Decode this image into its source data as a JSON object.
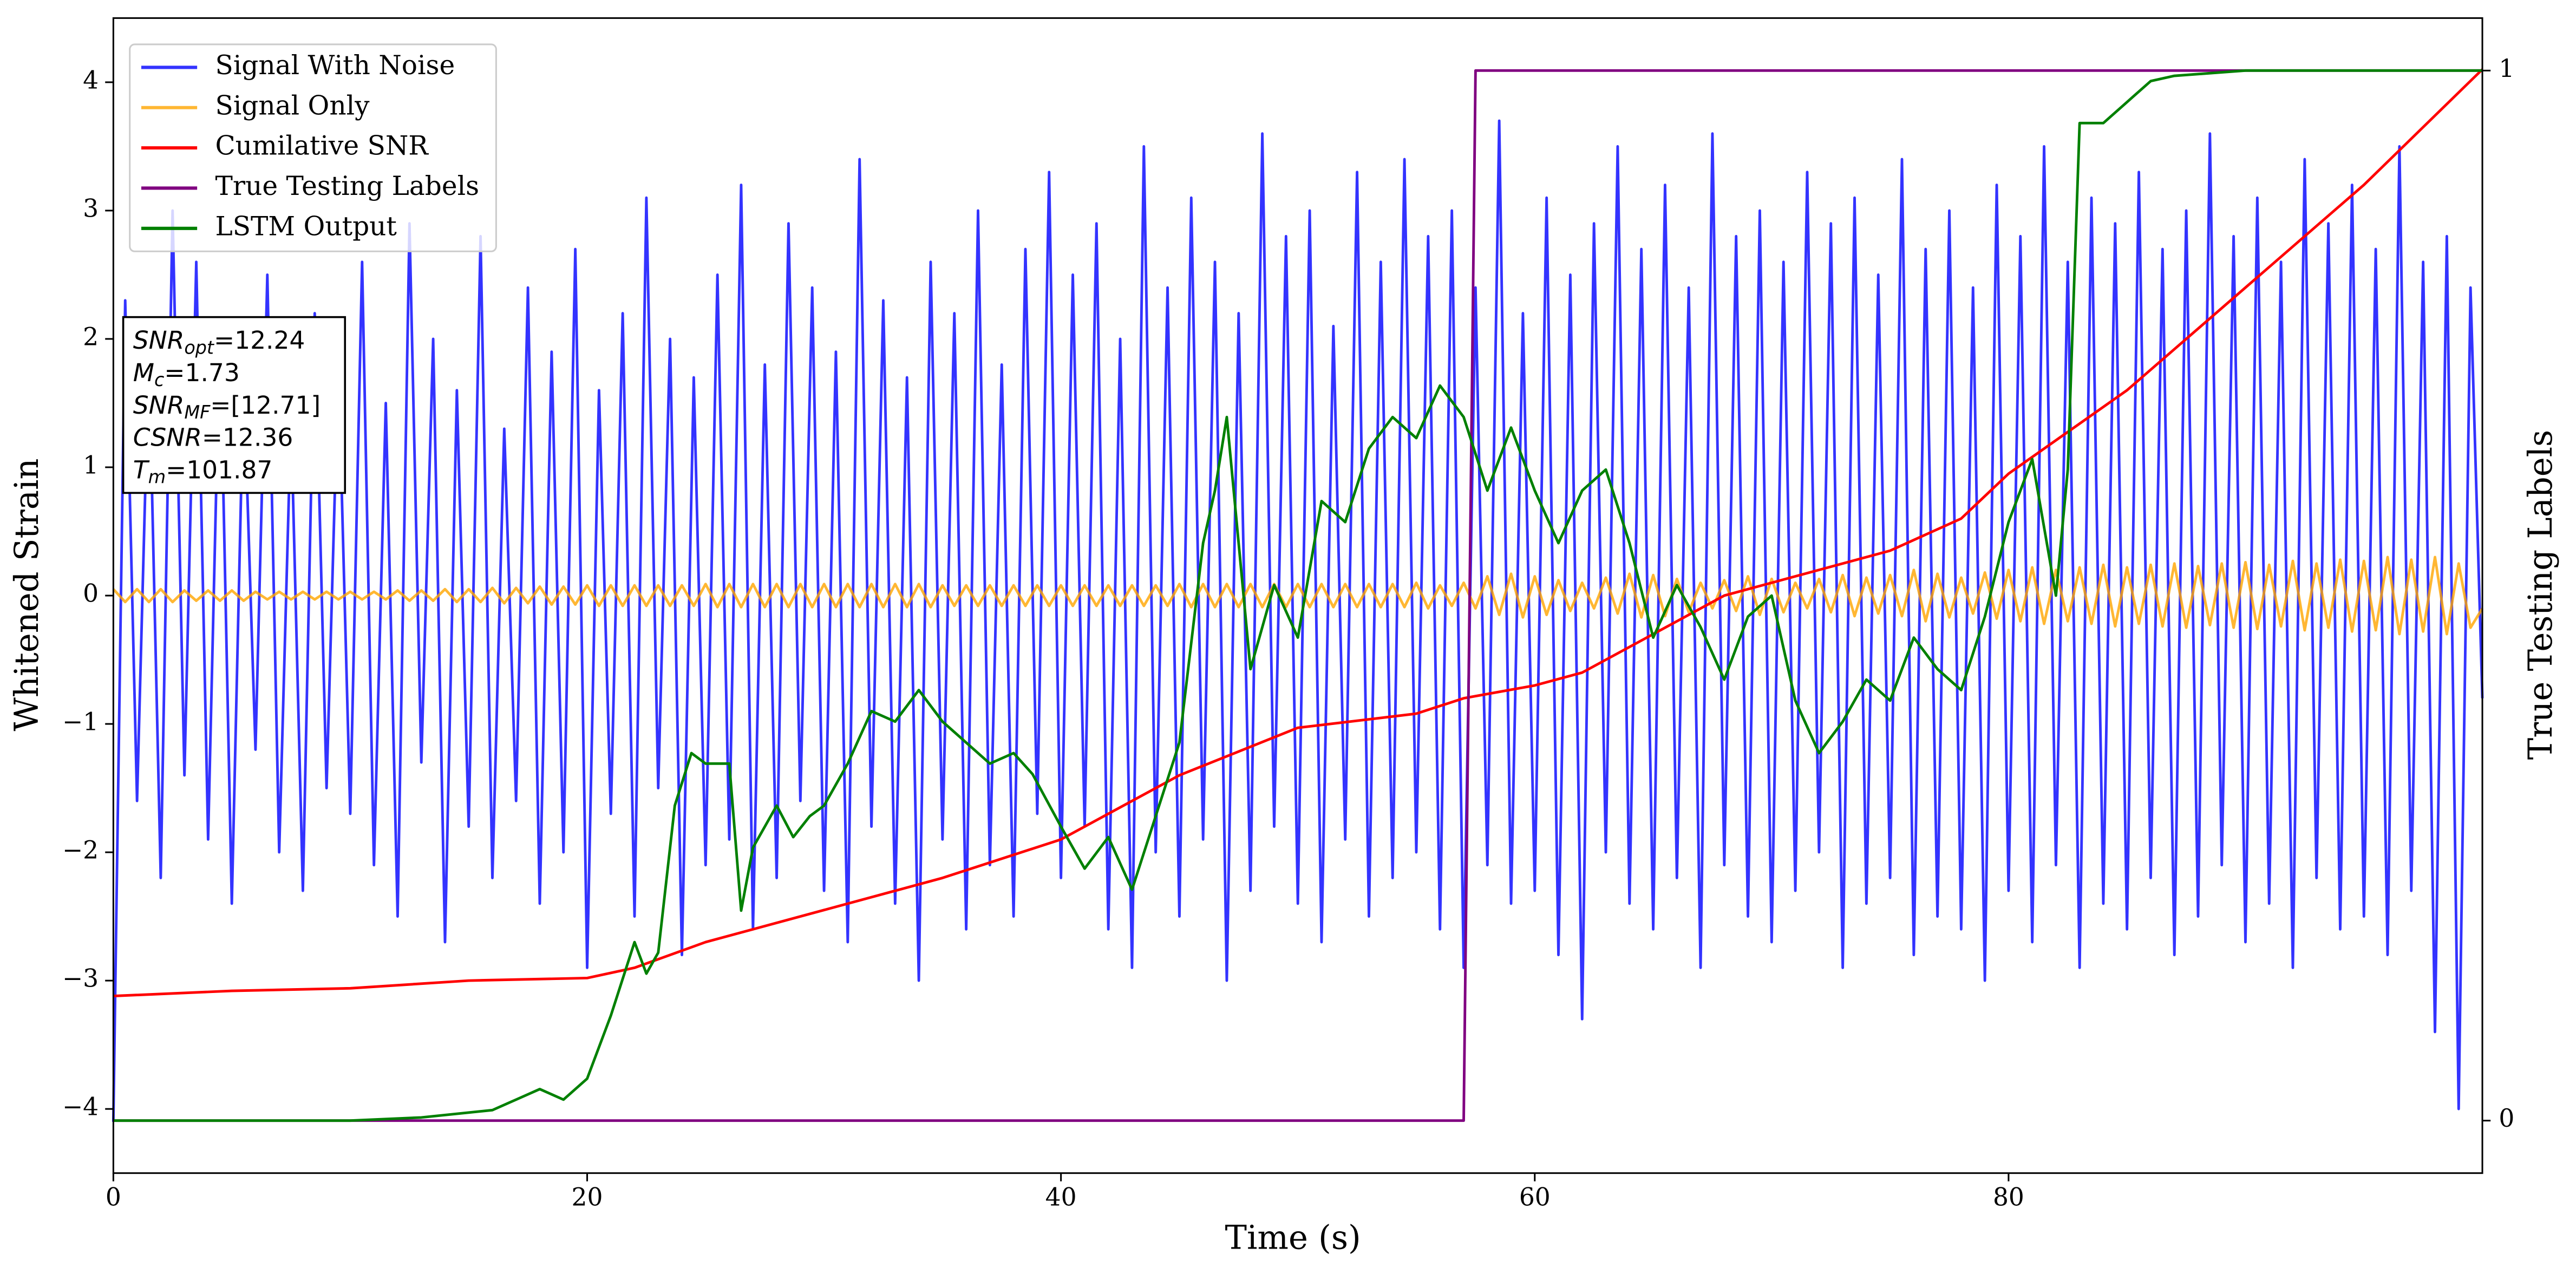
{
  "chart_data": {
    "type": "line",
    "xlabel": "Time (s)",
    "ylabel": "Whitened Strain",
    "y2label": "True Testing Labels",
    "xlim": [
      0,
      100
    ],
    "xticks": [
      0,
      20,
      40,
      60,
      80
    ],
    "ylim": [
      -4.5,
      4.5
    ],
    "yticks": [
      {
        "value": -4,
        "label": "−4"
      },
      {
        "value": -3,
        "label": "−3"
      },
      {
        "value": -2,
        "label": "−2"
      },
      {
        "value": -1,
        "label": "−1"
      },
      0,
      1,
      2,
      3,
      4
    ],
    "y2lim": [
      -0.05,
      1.05
    ],
    "y2ticks": [
      0,
      1
    ],
    "legend": "upper left",
    "annotations": [
      {
        "text": "SNR",
        "sub": "opt",
        "rest": "=12.24"
      },
      {
        "text": "M",
        "sub": "c",
        "rest": "=1.73"
      },
      {
        "text": "SNR",
        "sub": "MF",
        "rest": "=[12.71]"
      },
      {
        "text": "CSNR",
        "rest": "=12.36"
      },
      {
        "text": "T",
        "sub": "m",
        "rest": "=101.87"
      }
    ],
    "x": [
      0,
      0.5,
      1,
      1.5,
      2,
      2.5,
      3,
      3.5,
      4,
      4.5,
      5,
      5.5,
      6,
      6.5,
      7,
      7.5,
      8,
      8.5,
      9,
      9.5,
      10,
      10.5,
      11,
      11.5,
      12,
      12.5,
      13,
      13.5,
      14,
      14.5,
      15,
      15.5,
      16,
      16.5,
      17,
      17.5,
      18,
      18.5,
      19,
      19.5,
      20,
      20.5,
      21,
      21.5,
      22,
      22.5,
      23,
      23.5,
      24,
      24.5,
      25,
      25.5,
      26,
      26.5,
      27,
      27.5,
      28,
      28.5,
      29,
      29.5,
      30,
      30.5,
      31,
      31.5,
      32,
      32.5,
      33,
      33.5,
      34,
      34.5,
      35,
      35.5,
      36,
      36.5,
      37,
      37.5,
      38,
      38.5,
      39,
      39.5,
      40,
      40.5,
      41,
      41.5,
      42,
      42.5,
      43,
      43.5,
      44,
      44.5,
      45,
      45.5,
      46,
      46.5,
      47,
      47.5,
      48,
      48.5,
      49,
      49.5,
      50,
      50.5,
      51,
      51.5,
      52,
      52.5,
      53,
      53.5,
      54,
      54.5,
      55,
      55.5,
      56,
      56.5,
      57,
      57.5,
      58,
      58.5,
      59,
      59.5,
      60,
      60.5,
      61,
      61.5,
      62,
      62.5,
      63,
      63.5,
      64,
      64.5,
      65,
      65.5,
      66,
      66.5,
      67,
      67.5,
      68,
      68.5,
      69,
      69.5,
      70,
      70.5,
      71,
      71.5,
      72,
      72.5,
      73,
      73.5,
      74,
      74.5,
      75,
      75.5,
      76,
      76.5,
      77,
      77.5,
      78,
      78.5,
      79,
      79.5,
      80,
      80.5,
      81,
      81.5,
      82,
      82.5,
      83,
      83.5,
      84,
      84.5,
      85,
      85.5,
      86,
      86.5,
      87,
      87.5,
      88,
      88.5,
      89,
      89.5,
      90,
      90.5,
      91,
      91.5,
      92,
      92.5,
      93,
      93.5,
      94,
      94.5,
      95,
      95.5,
      96,
      96.5,
      97,
      97.5,
      98,
      98.5,
      99,
      99.5,
      100
    ],
    "series": [
      {
        "name": "Signal With Noise",
        "color": "#0000ff",
        "alpha": 0.8,
        "axis": "y",
        "values": [
          -4.1,
          2.3,
          -1.6,
          1.9,
          -2.2,
          3.0,
          -1.4,
          2.6,
          -1.9,
          2.1,
          -2.4,
          1.7,
          -1.2,
          2.5,
          -2.0,
          1.4,
          -2.3,
          2.2,
          -1.5,
          1.8,
          -1.7,
          2.6,
          -2.1,
          1.5,
          -2.5,
          2.9,
          -1.3,
          2.0,
          -2.7,
          1.6,
          -1.8,
          2.8,
          -2.2,
          1.3,
          -1.6,
          2.4,
          -2.4,
          1.9,
          -2.0,
          2.7,
          -2.9,
          1.6,
          -1.7,
          2.2,
          -2.5,
          3.1,
          -1.5,
          2.0,
          -2.8,
          1.7,
          -2.1,
          2.5,
          -1.9,
          3.2,
          -2.6,
          1.8,
          -2.2,
          2.9,
          -1.6,
          2.4,
          -2.3,
          1.9,
          -2.7,
          3.4,
          -1.8,
          2.3,
          -2.4,
          1.7,
          -3.0,
          2.6,
          -1.9,
          2.2,
          -2.6,
          3.0,
          -2.1,
          1.8,
          -2.5,
          2.7,
          -1.7,
          3.3,
          -2.2,
          2.5,
          -1.8,
          2.9,
          -2.6,
          2.0,
          -2.9,
          3.5,
          -2.0,
          2.4,
          -2.5,
          3.1,
          -1.9,
          2.6,
          -3.0,
          2.2,
          -2.3,
          3.6,
          -1.8,
          2.8,
          -2.4,
          3.0,
          -2.7,
          2.1,
          -1.9,
          3.3,
          -2.5,
          2.6,
          -2.2,
          3.4,
          -2.0,
          2.8,
          -2.6,
          3.0,
          -2.9,
          2.4,
          -2.1,
          3.7,
          -2.4,
          2.2,
          -2.3,
          3.1,
          -2.8,
          2.5,
          -3.3,
          2.9,
          -2.0,
          3.5,
          -2.4,
          2.7,
          -2.6,
          3.2,
          -2.2,
          2.4,
          -2.9,
          3.6,
          -2.1,
          2.8,
          -2.5,
          3.0,
          -2.7,
          2.6,
          -2.3,
          3.3,
          -2.0,
          2.9,
          -2.9,
          3.1,
          -2.4,
          2.5,
          -2.2,
          3.4,
          -2.8,
          2.7,
          -2.5,
          3.0,
          -2.6,
          2.4,
          -3.0,
          3.2,
          -2.3,
          2.8,
          -2.7,
          3.5,
          -2.1,
          2.6,
          -2.9,
          3.1,
          -2.4,
          2.9,
          -2.6,
          3.3,
          -2.2,
          2.7,
          -2.8,
          3.0,
          -2.5,
          3.6,
          -2.1,
          2.8,
          -2.7,
          3.1,
          -2.4,
          2.6,
          -2.9,
          3.4,
          -2.2,
          2.9,
          -2.6,
          3.2,
          -2.5,
          2.7,
          -2.8,
          3.5,
          -2.3,
          2.6,
          -3.4,
          2.8,
          -4.0,
          2.4,
          -0.8
        ]
      },
      {
        "name": "Signal Only",
        "color": "#ffa500",
        "alpha": 0.8,
        "axis": "y",
        "values": [
          0.05,
          -0.05,
          0.05,
          -0.05,
          0.05,
          -0.05,
          0.04,
          -0.04,
          0.04,
          -0.04,
          0.04,
          -0.04,
          0.03,
          -0.03,
          0.03,
          -0.03,
          0.03,
          -0.03,
          0.03,
          -0.03,
          0.03,
          -0.03,
          0.03,
          -0.03,
          0.04,
          -0.04,
          0.04,
          -0.04,
          0.05,
          -0.05,
          0.05,
          -0.05,
          0.06,
          -0.06,
          0.06,
          -0.06,
          0.07,
          -0.07,
          0.07,
          -0.07,
          0.08,
          -0.08,
          0.08,
          -0.08,
          0.08,
          -0.08,
          0.08,
          -0.08,
          0.08,
          -0.08,
          0.09,
          -0.09,
          0.09,
          -0.09,
          0.09,
          -0.09,
          0.09,
          -0.09,
          0.09,
          -0.09,
          0.09,
          -0.09,
          0.09,
          -0.09,
          0.09,
          -0.09,
          0.09,
          -0.09,
          0.09,
          -0.09,
          0.08,
          -0.08,
          0.08,
          -0.08,
          0.08,
          -0.08,
          0.08,
          -0.08,
          0.08,
          -0.08,
          0.08,
          -0.08,
          0.08,
          -0.08,
          0.08,
          -0.08,
          0.08,
          -0.08,
          0.08,
          -0.08,
          0.09,
          -0.09,
          0.09,
          -0.09,
          0.09,
          -0.09,
          0.09,
          -0.09,
          0.09,
          -0.09,
          0.09,
          -0.09,
          0.09,
          -0.09,
          0.09,
          -0.09,
          0.09,
          -0.09,
          0.09,
          -0.09,
          0.1,
          -0.1,
          0.08,
          -0.08,
          0.1,
          -0.1,
          0.15,
          -0.15,
          0.17,
          -0.17,
          0.15,
          -0.15,
          0.12,
          -0.12,
          0.1,
          -0.1,
          0.14,
          -0.14,
          0.17,
          -0.17,
          0.16,
          -0.16,
          0.13,
          -0.13,
          0.1,
          -0.1,
          0.12,
          -0.12,
          0.15,
          -0.15,
          0.13,
          -0.13,
          0.1,
          -0.1,
          0.13,
          -0.13,
          0.16,
          -0.16,
          0.14,
          -0.14,
          0.16,
          -0.16,
          0.2,
          -0.2,
          0.17,
          -0.17,
          0.14,
          -0.14,
          0.18,
          -0.18,
          0.2,
          -0.2,
          0.22,
          -0.22,
          0.2,
          -0.2,
          0.22,
          -0.22,
          0.24,
          -0.24,
          0.22,
          -0.22,
          0.24,
          -0.24,
          0.25,
          -0.25,
          0.23,
          -0.23,
          0.25,
          -0.25,
          0.26,
          -0.26,
          0.24,
          -0.24,
          0.27,
          -0.27,
          0.25,
          -0.25,
          0.28,
          -0.28,
          0.27,
          -0.27,
          0.3,
          -0.3,
          0.28,
          -0.28,
          0.3,
          -0.3,
          0.25,
          -0.25,
          -0.1
        ]
      },
      {
        "name": "Cumilative SNR",
        "color": "#ff0000",
        "axis": "y",
        "x": [
          0,
          5,
          10,
          15,
          20,
          22,
          25,
          30,
          35,
          40,
          45,
          50,
          55,
          57,
          60,
          62,
          65,
          68,
          70,
          75,
          78,
          80,
          85,
          90,
          95,
          100
        ],
        "values": [
          -3.12,
          -3.08,
          -3.06,
          -3.0,
          -2.98,
          -2.9,
          -2.7,
          -2.45,
          -2.2,
          -1.9,
          -1.4,
          -1.03,
          -0.92,
          -0.8,
          -0.7,
          -0.6,
          -0.3,
          0,
          0.1,
          0.35,
          0.6,
          0.95,
          1.6,
          2.4,
          3.2,
          4.1
        ]
      },
      {
        "name": "True Testing Labels",
        "color": "#800080",
        "axis": "y2",
        "x": [
          0,
          57,
          57.5,
          100
        ],
        "values": [
          0,
          0,
          1,
          1
        ]
      },
      {
        "name": "LSTM Output",
        "color": "#008000",
        "axis": "y2",
        "x": [
          0,
          10,
          13,
          16,
          17,
          18,
          19,
          20,
          21,
          22,
          22.5,
          23,
          23.7,
          24.4,
          25,
          26,
          26.5,
          27,
          28,
          28.7,
          29.4,
          30,
          31,
          32,
          33,
          34,
          35,
          36,
          37,
          38,
          38.8,
          40,
          41,
          42,
          43,
          44,
          45,
          46,
          46.5,
          47,
          48,
          49,
          50,
          51,
          52,
          53,
          54,
          55,
          56,
          57,
          58,
          59,
          60,
          61,
          62,
          63,
          64,
          65,
          66,
          67,
          68,
          69,
          70,
          71,
          72,
          73,
          74,
          75,
          76,
          77,
          78,
          79,
          80,
          81,
          82,
          82.5,
          83,
          84,
          85,
          86,
          87,
          90,
          100
        ],
        "values": [
          0,
          0,
          0.003,
          0.01,
          0.02,
          0.03,
          0.02,
          0.04,
          0.1,
          0.17,
          0.14,
          0.16,
          0.3,
          0.35,
          0.34,
          0.34,
          0.2,
          0.26,
          0.3,
          0.27,
          0.29,
          0.3,
          0.34,
          0.39,
          0.38,
          0.41,
          0.38,
          0.36,
          0.34,
          0.35,
          0.33,
          0.28,
          0.24,
          0.27,
          0.22,
          0.29,
          0.36,
          0.55,
          0.6,
          0.67,
          0.43,
          0.51,
          0.46,
          0.59,
          0.57,
          0.64,
          0.67,
          0.65,
          0.7,
          0.67,
          0.6,
          0.66,
          0.6,
          0.55,
          0.6,
          0.62,
          0.55,
          0.46,
          0.51,
          0.47,
          0.42,
          0.48,
          0.5,
          0.4,
          0.35,
          0.38,
          0.42,
          0.4,
          0.46,
          0.43,
          0.41,
          0.48,
          0.57,
          0.63,
          0.5,
          0.62,
          0.95,
          0.95,
          0.97,
          0.99,
          0.995,
          1,
          1
        ]
      }
    ]
  }
}
